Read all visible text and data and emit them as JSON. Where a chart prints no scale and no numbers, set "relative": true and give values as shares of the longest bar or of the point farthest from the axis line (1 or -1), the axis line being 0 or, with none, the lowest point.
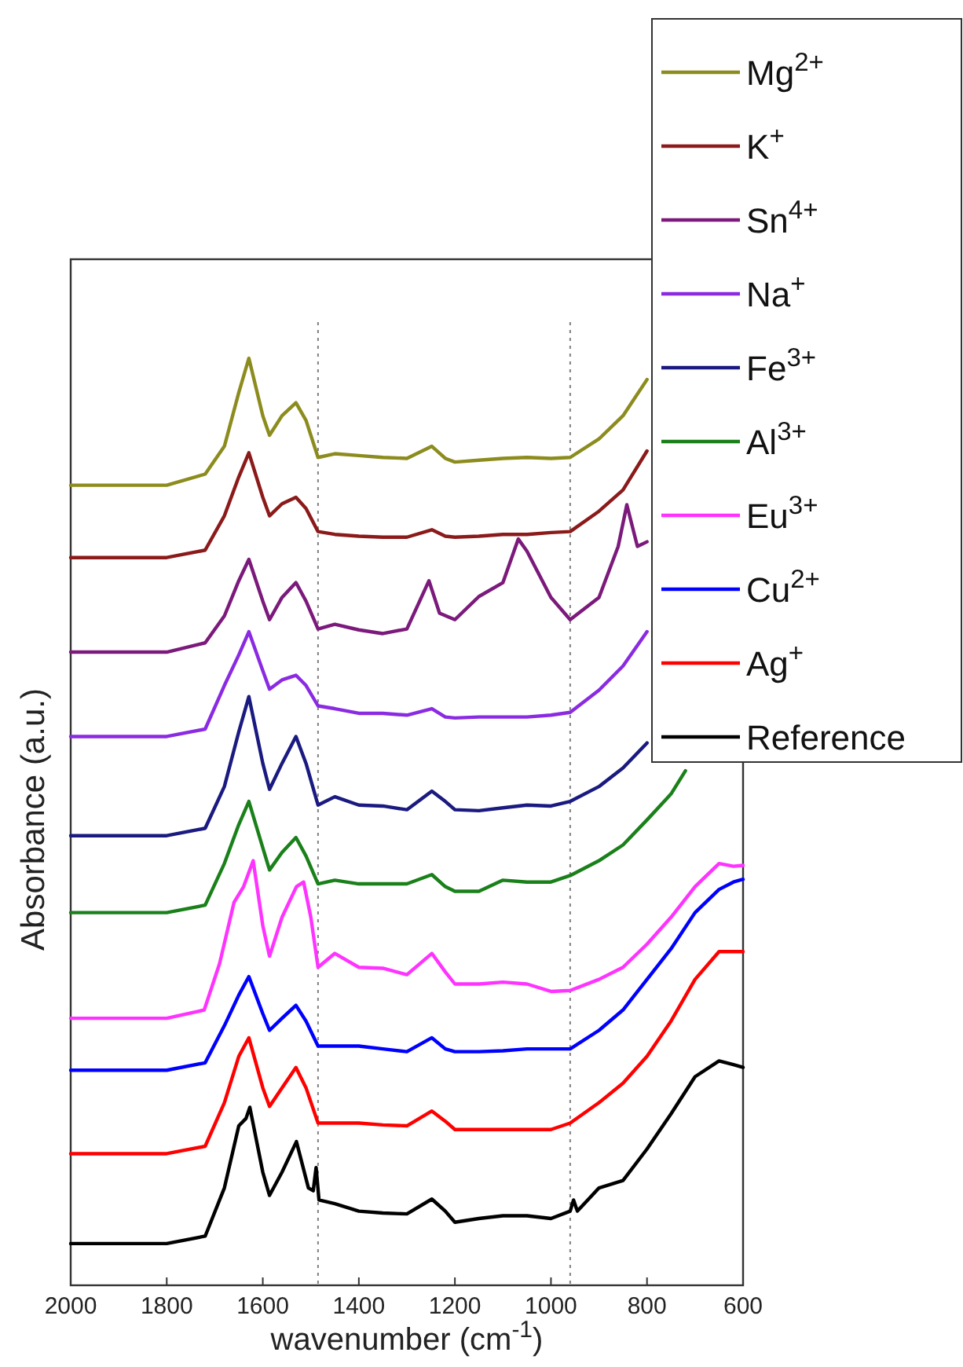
{
  "chart_data": {
    "type": "line",
    "relative": true,
    "xlabel": "wavenumber (cm$^{-1}$)",
    "ylabel": "Absorbance (a.u.)",
    "xlim": [
      2000,
      600
    ],
    "xticks": [
      2000,
      1800,
      1600,
      1400,
      1200,
      1000,
      800,
      600
    ],
    "tick_labels": "x",
    "grid": false,
    "legend": "top right",
    "line_style": "solid",
    "ref_lines": [
      {
        "axis": "x",
        "value": 1485,
        "color": "#808080",
        "line_style": "dotted"
      },
      {
        "axis": "x",
        "value": 960,
        "color": "#808080",
        "line_style": "dotted"
      }
    ],
    "series": [
      {
        "name": "Mg$^{2+}$",
        "color": "#8c8c1e",
        "x": [
          2000,
          1800,
          1720,
          1680,
          1650,
          1629,
          1600,
          1586,
          1560,
          1531,
          1510,
          1485,
          1450,
          1400,
          1350,
          1300,
          1248,
          1220,
          1200,
          1150,
          1100,
          1050,
          1000,
          960,
          900,
          850,
          800
        ],
        "values": [
          0.863,
          0.863,
          0.875,
          0.905,
          0.963,
          1,
          0.938,
          0.917,
          0.938,
          0.952,
          0.933,
          0.893,
          0.897,
          0.895,
          0.893,
          0.892,
          0.905,
          0.892,
          0.888,
          0.89,
          0.892,
          0.893,
          0.892,
          0.893,
          0.913,
          0.938,
          0.977
        ]
      },
      {
        "name": "K$^{+}$",
        "color": "#8b1a1a",
        "x": [
          2000,
          1800,
          1720,
          1680,
          1650,
          1629,
          1600,
          1586,
          1560,
          1531,
          1510,
          1485,
          1450,
          1400,
          1350,
          1300,
          1248,
          1220,
          1200,
          1150,
          1100,
          1050,
          1000,
          960,
          900,
          850,
          800
        ],
        "values": [
          0.785,
          0.785,
          0.793,
          0.83,
          0.872,
          0.898,
          0.85,
          0.83,
          0.843,
          0.85,
          0.838,
          0.813,
          0.81,
          0.808,
          0.807,
          0.807,
          0.815,
          0.808,
          0.807,
          0.808,
          0.81,
          0.81,
          0.812,
          0.813,
          0.835,
          0.858,
          0.9
        ]
      },
      {
        "name": "Sn$^{4+}$",
        "color": "#7b1a7b",
        "x": [
          2000,
          1800,
          1720,
          1680,
          1650,
          1629,
          1600,
          1586,
          1560,
          1531,
          1510,
          1485,
          1450,
          1400,
          1350,
          1300,
          1254,
          1232,
          1200,
          1150,
          1100,
          1068,
          1050,
          1000,
          960,
          900,
          860,
          842,
          820,
          800
        ],
        "values": [
          0.683,
          0.683,
          0.693,
          0.722,
          0.76,
          0.783,
          0.738,
          0.718,
          0.742,
          0.758,
          0.738,
          0.708,
          0.713,
          0.707,
          0.703,
          0.708,
          0.76,
          0.725,
          0.718,
          0.743,
          0.758,
          0.805,
          0.792,
          0.742,
          0.718,
          0.742,
          0.797,
          0.842,
          0.797,
          0.802
        ]
      },
      {
        "name": "Na$^{+}$",
        "color": "#8a2be2",
        "x": [
          2000,
          1800,
          1720,
          1680,
          1650,
          1629,
          1600,
          1586,
          1560,
          1531,
          1510,
          1485,
          1450,
          1400,
          1350,
          1300,
          1248,
          1220,
          1200,
          1150,
          1100,
          1050,
          1000,
          960,
          900,
          850,
          800
        ],
        "values": [
          0.592,
          0.592,
          0.6,
          0.647,
          0.68,
          0.705,
          0.663,
          0.643,
          0.653,
          0.658,
          0.647,
          0.625,
          0.622,
          0.617,
          0.617,
          0.615,
          0.622,
          0.613,
          0.612,
          0.613,
          0.613,
          0.613,
          0.615,
          0.618,
          0.642,
          0.668,
          0.705
        ]
      },
      {
        "name": "Fe$^{3+}$",
        "color": "#1a1a80",
        "x": [
          2000,
          1800,
          1720,
          1680,
          1650,
          1629,
          1600,
          1586,
          1560,
          1531,
          1510,
          1485,
          1450,
          1400,
          1350,
          1300,
          1248,
          1220,
          1200,
          1150,
          1100,
          1050,
          1000,
          960,
          900,
          850,
          800
        ],
        "values": [
          0.485,
          0.485,
          0.493,
          0.538,
          0.597,
          0.635,
          0.563,
          0.535,
          0.563,
          0.592,
          0.563,
          0.518,
          0.527,
          0.518,
          0.517,
          0.513,
          0.533,
          0.522,
          0.513,
          0.512,
          0.515,
          0.518,
          0.517,
          0.522,
          0.538,
          0.558,
          0.585
        ]
      },
      {
        "name": "Al$^{3+}$",
        "color": "#1a801a",
        "x": [
          2000,
          1800,
          1720,
          1680,
          1650,
          1629,
          1600,
          1586,
          1560,
          1531,
          1510,
          1485,
          1450,
          1400,
          1350,
          1300,
          1248,
          1220,
          1200,
          1150,
          1100,
          1050,
          1000,
          960,
          900,
          850,
          800,
          750,
          720
        ],
        "values": [
          0.402,
          0.402,
          0.41,
          0.455,
          0.497,
          0.522,
          0.472,
          0.448,
          0.467,
          0.483,
          0.463,
          0.433,
          0.437,
          0.433,
          0.433,
          0.433,
          0.443,
          0.43,
          0.425,
          0.425,
          0.437,
          0.435,
          0.435,
          0.442,
          0.458,
          0.475,
          0.502,
          0.53,
          0.555
        ]
      },
      {
        "name": "Eu$^{3+}$",
        "color": "#ff33ff",
        "x": [
          2000,
          1800,
          1722,
          1690,
          1660,
          1640,
          1620,
          1600,
          1586,
          1560,
          1530,
          1515,
          1500,
          1485,
          1450,
          1400,
          1350,
          1300,
          1248,
          1220,
          1200,
          1150,
          1100,
          1050,
          1000,
          960,
          900,
          850,
          800,
          750,
          700,
          650,
          620,
          600
        ],
        "values": [
          0.288,
          0.288,
          0.297,
          0.347,
          0.413,
          0.43,
          0.458,
          0.388,
          0.355,
          0.397,
          0.43,
          0.435,
          0.397,
          0.343,
          0.358,
          0.343,
          0.342,
          0.335,
          0.358,
          0.338,
          0.325,
          0.325,
          0.327,
          0.325,
          0.317,
          0.318,
          0.33,
          0.343,
          0.368,
          0.397,
          0.43,
          0.455,
          0.452,
          0.453
        ]
      },
      {
        "name": "Cu$^{2+}$",
        "color": "#0000ff",
        "x": [
          2000,
          1800,
          1720,
          1680,
          1650,
          1629,
          1600,
          1586,
          1560,
          1531,
          1510,
          1485,
          1450,
          1400,
          1350,
          1300,
          1248,
          1220,
          1200,
          1150,
          1100,
          1050,
          1000,
          960,
          900,
          850,
          800,
          750,
          700,
          650,
          620,
          600
        ],
        "values": [
          0.232,
          0.232,
          0.24,
          0.28,
          0.313,
          0.333,
          0.293,
          0.275,
          0.288,
          0.302,
          0.285,
          0.258,
          0.258,
          0.258,
          0.255,
          0.252,
          0.267,
          0.255,
          0.252,
          0.252,
          0.253,
          0.255,
          0.255,
          0.255,
          0.275,
          0.297,
          0.33,
          0.363,
          0.402,
          0.427,
          0.435,
          0.438
        ]
      },
      {
        "name": "Ag$^{+}$",
        "color": "#ff0000",
        "x": [
          2000,
          1800,
          1720,
          1680,
          1650,
          1629,
          1600,
          1586,
          1560,
          1531,
          1510,
          1485,
          1450,
          1400,
          1350,
          1300,
          1248,
          1220,
          1200,
          1150,
          1100,
          1050,
          1000,
          960,
          900,
          850,
          800,
          750,
          700,
          650,
          620,
          600
        ],
        "values": [
          0.142,
          0.142,
          0.15,
          0.197,
          0.247,
          0.267,
          0.213,
          0.193,
          0.213,
          0.235,
          0.213,
          0.175,
          0.175,
          0.175,
          0.173,
          0.172,
          0.188,
          0.177,
          0.168,
          0.168,
          0.168,
          0.168,
          0.168,
          0.175,
          0.197,
          0.218,
          0.247,
          0.285,
          0.33,
          0.36,
          0.36,
          0.36
        ]
      },
      {
        "name": "Reference",
        "color": "#000000",
        "x": [
          2000,
          1800,
          1720,
          1680,
          1650,
          1635,
          1627,
          1600,
          1586,
          1560,
          1530,
          1505,
          1495,
          1489,
          1483,
          1450,
          1400,
          1350,
          1300,
          1248,
          1220,
          1200,
          1150,
          1100,
          1050,
          1000,
          960,
          953,
          945,
          900,
          850,
          800,
          750,
          700,
          650,
          620,
          600
        ],
        "values": [
          0.045,
          0.045,
          0.053,
          0.105,
          0.172,
          0.18,
          0.192,
          0.122,
          0.097,
          0.122,
          0.155,
          0.105,
          0.102,
          0.127,
          0.092,
          0.088,
          0.08,
          0.078,
          0.077,
          0.093,
          0.08,
          0.068,
          0.072,
          0.075,
          0.075,
          0.072,
          0.08,
          0.092,
          0.08,
          0.105,
          0.113,
          0.147,
          0.185,
          0.225,
          0.242,
          0.238,
          0.235
        ]
      }
    ]
  }
}
